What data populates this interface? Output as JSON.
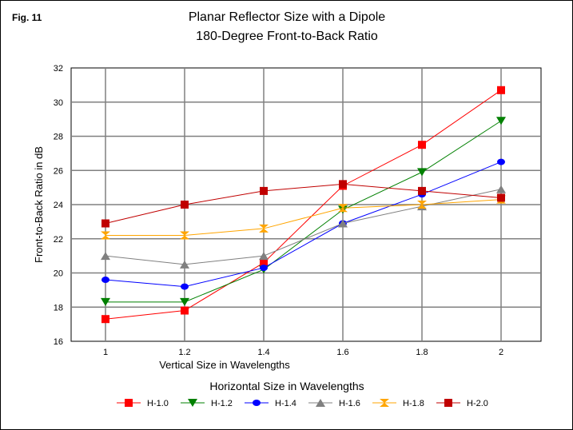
{
  "figure_label": "Fig. 11",
  "chart_data": {
    "type": "line",
    "title": "Planar Reflector Size with a Dipole",
    "subtitle": "180-Degree Front-to-Back Ratio",
    "xlabel": "Vertical Size in Wavelengths",
    "ylabel": "Front-to-Back Ratio in dB",
    "x": [
      1,
      1.2,
      1.4,
      1.6,
      1.8,
      2
    ],
    "x_tick_labels": [
      "1",
      "1.2",
      "1.4",
      "1.6",
      "1.8",
      "2"
    ],
    "ylim": [
      16,
      32
    ],
    "y_ticks": [
      16,
      18,
      20,
      22,
      24,
      26,
      28,
      30,
      32
    ],
    "grid": true,
    "legend_title": "Horizontal Size in Wavelengths",
    "legend_position": "bottom",
    "series": [
      {
        "name": "H-1.0",
        "color": "#ff0000",
        "marker": "square",
        "values": [
          17.3,
          17.8,
          20.6,
          25.1,
          27.5,
          30.7
        ]
      },
      {
        "name": "H-1.2",
        "color": "#008000",
        "marker": "triangle-down",
        "values": [
          18.3,
          18.3,
          20.2,
          23.7,
          25.9,
          28.9
        ]
      },
      {
        "name": "H-1.4",
        "color": "#0000ff",
        "marker": "circle",
        "values": [
          19.6,
          19.2,
          20.3,
          22.9,
          24.6,
          26.5
        ]
      },
      {
        "name": "H-1.6",
        "color": "#808080",
        "marker": "triangle-up",
        "values": [
          21.0,
          20.5,
          21.0,
          22.9,
          23.9,
          24.9
        ]
      },
      {
        "name": "H-1.8",
        "color": "#ffa500",
        "marker": "hourglass",
        "values": [
          22.2,
          22.2,
          22.6,
          23.8,
          24.0,
          24.3
        ]
      },
      {
        "name": "H-2.0",
        "color": "#c00000",
        "marker": "square",
        "values": [
          22.9,
          24.0,
          24.8,
          25.2,
          24.8,
          24.4
        ]
      }
    ]
  }
}
